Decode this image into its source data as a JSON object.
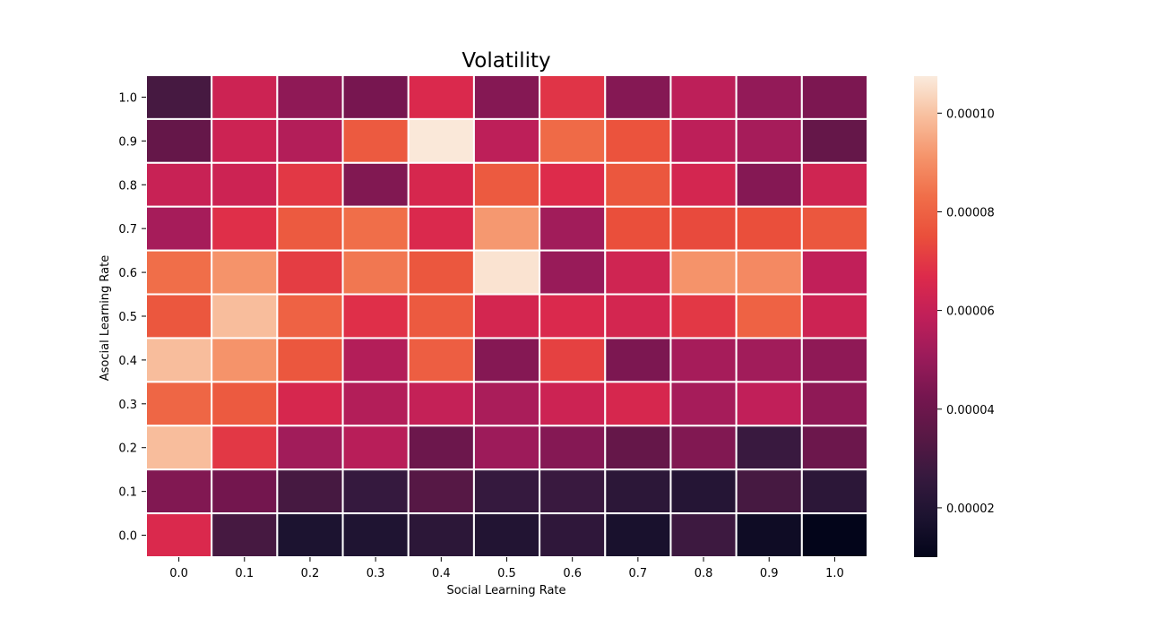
{
  "chart_data": {
    "type": "heatmap",
    "title": "Volatility",
    "xlabel": "Social Learning Rate",
    "ylabel": "Asocial Learning Rate",
    "x_categories": [
      "0.0",
      "0.1",
      "0.2",
      "0.3",
      "0.4",
      "0.5",
      "0.6",
      "0.7",
      "0.8",
      "0.9",
      "1.0"
    ],
    "y_categories": [
      "1.0",
      "0.9",
      "0.8",
      "0.7",
      "0.6",
      "0.5",
      "0.4",
      "0.3",
      "0.2",
      "0.1",
      "0.0"
    ],
    "values": [
      [
        3e-05,
        6.2e-05,
        4.8e-05,
        4.3e-05,
        6.6e-05,
        4.6e-05,
        6.9e-05,
        4.6e-05,
        5.8e-05,
        4.9e-05,
        4.4e-05
      ],
      [
        3.8e-05,
        6.2e-05,
        5.6e-05,
        7.8e-05,
        0.000107,
        5.8e-05,
        8.2e-05,
        7.6e-05,
        5.8e-05,
        5.3e-05,
        3.8e-05
      ],
      [
        6.1e-05,
        6.2e-05,
        7e-05,
        4.5e-05,
        6.5e-05,
        7.8e-05,
        6.7e-05,
        7.7e-05,
        6.4e-05,
        4.6e-05,
        6.3e-05
      ],
      [
        5.3e-05,
        6.8e-05,
        7.8e-05,
        8.3e-05,
        6.6e-05,
        9.2e-05,
        5.2e-05,
        7.5e-05,
        7.4e-05,
        7.5e-05,
        7.7e-05
      ],
      [
        8.3e-05,
        9.1e-05,
        7.1e-05,
        8.5e-05,
        7.7e-05,
        0.000106,
        5e-05,
        6.3e-05,
        9.1e-05,
        8.9e-05,
        5.9e-05
      ],
      [
        7.7e-05,
        9.9e-05,
        8e-05,
        6.8e-05,
        7.8e-05,
        6.4e-05,
        6.6e-05,
        6.4e-05,
        7e-05,
        8e-05,
        6.2e-05
      ],
      [
        9.9e-05,
        9.1e-05,
        7.7e-05,
        5.6e-05,
        7.9e-05,
        4.6e-05,
        7.2e-05,
        4.4e-05,
        5.3e-05,
        5.2e-05,
        4.8e-05
      ],
      [
        8.1e-05,
        7.8e-05,
        6.5e-05,
        5.6e-05,
        6e-05,
        5.4e-05,
        6.2e-05,
        6.5e-05,
        5.3e-05,
        5.9e-05,
        4.8e-05
      ],
      [
        9.9e-05,
        7e-05,
        5.2e-05,
        5.7e-05,
        4e-05,
        5.1e-05,
        4.6e-05,
        3.8e-05,
        4.5e-05,
        2.7e-05,
        4e-05
      ],
      [
        4.5e-05,
        4.2e-05,
        3e-05,
        2.6e-05,
        3.4e-05,
        2.6e-05,
        2.7e-05,
        2.3e-05,
        2.1e-05,
        3e-05,
        2.3e-05
      ],
      [
        6.6e-05,
        3e-05,
        1.8e-05,
        1.9e-05,
        2.3e-05,
        2e-05,
        2.4e-05,
        1.7e-05,
        2.8e-05,
        1.4e-05,
        1e-05
      ]
    ],
    "colorbar": {
      "min": 1e-05,
      "max": 0.0001075,
      "ticks": [
        2e-05,
        4e-05,
        6e-05,
        8e-05,
        0.0001
      ],
      "tick_labels": [
        "0.00002",
        "0.00004",
        "0.00006",
        "0.00008",
        "0.00010"
      ],
      "colormap": "rocket",
      "color_stops": [
        "#03051a",
        "#1c1330",
        "#36193e",
        "#581845",
        "#75164f",
        "#9b1b5a",
        "#c01f59",
        "#dd2a4b",
        "#ea4f3b",
        "#f06e49",
        "#f5946b",
        "#f8bf9e",
        "#faebdd"
      ]
    },
    "grid": false,
    "cell_separator_color": "#ffffff"
  }
}
